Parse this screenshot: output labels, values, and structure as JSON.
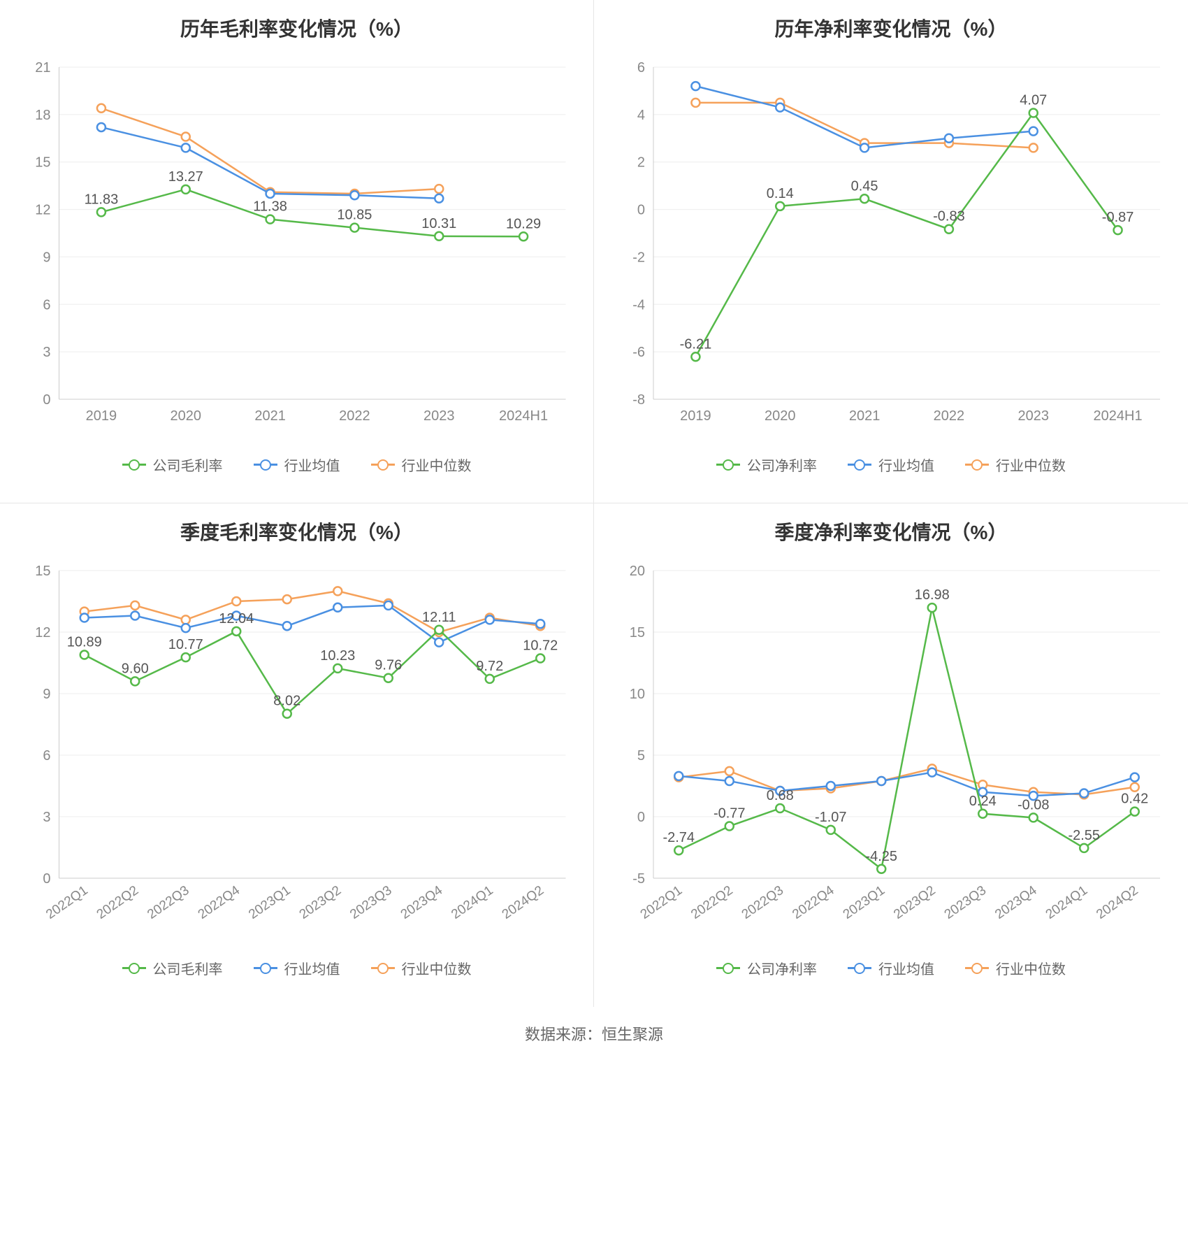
{
  "global": {
    "footer_text": "数据来源：恒生聚源",
    "colors": {
      "company": "#55b949",
      "industry_avg": "#4a90e2",
      "industry_median": "#f5a15a",
      "axis_text": "#888888",
      "axis_line": "#cccccc",
      "grid": "#eeeeee",
      "title": "#333333",
      "background": "#ffffff",
      "value_label": "#555555"
    },
    "line_width": 2.5,
    "marker_radius": 6,
    "marker_fill": "#ffffff",
    "title_fontsize": 28,
    "axis_fontsize": 20,
    "legend_fontsize": 20
  },
  "charts": {
    "annual_gross": {
      "title": "历年毛利率变化情况（%）",
      "type": "line",
      "categories": [
        "2019",
        "2020",
        "2021",
        "2022",
        "2023",
        "2024H1"
      ],
      "x_rotate": 0,
      "ylim": [
        0,
        21
      ],
      "ytick_step": 3,
      "series": [
        {
          "key": "company",
          "name": "公司毛利率",
          "color": "#55b949",
          "show_values": true,
          "data": [
            11.83,
            13.27,
            11.38,
            10.85,
            10.31,
            10.29
          ]
        },
        {
          "key": "industry_avg",
          "name": "行业均值",
          "color": "#4a90e2",
          "show_values": false,
          "data": [
            17.2,
            15.9,
            13.0,
            12.9,
            12.7,
            null
          ]
        },
        {
          "key": "industry_median",
          "name": "行业中位数",
          "color": "#f5a15a",
          "show_values": false,
          "data": [
            18.4,
            16.6,
            13.1,
            13.0,
            13.3,
            null
          ]
        }
      ],
      "legend": [
        "公司毛利率",
        "行业均值",
        "行业中位数"
      ]
    },
    "annual_net": {
      "title": "历年净利率变化情况（%）",
      "type": "line",
      "categories": [
        "2019",
        "2020",
        "2021",
        "2022",
        "2023",
        "2024H1"
      ],
      "x_rotate": 0,
      "ylim": [
        -8,
        6
      ],
      "ytick_step": 2,
      "series": [
        {
          "key": "company",
          "name": "公司净利率",
          "color": "#55b949",
          "show_values": true,
          "data": [
            -6.21,
            0.14,
            0.45,
            -0.83,
            4.07,
            -0.87
          ]
        },
        {
          "key": "industry_avg",
          "name": "行业均值",
          "color": "#4a90e2",
          "show_values": false,
          "data": [
            5.2,
            4.3,
            2.6,
            3.0,
            3.3,
            null
          ]
        },
        {
          "key": "industry_median",
          "name": "行业中位数",
          "color": "#f5a15a",
          "show_values": false,
          "data": [
            4.5,
            4.5,
            2.8,
            2.8,
            2.6,
            null
          ]
        }
      ],
      "legend": [
        "公司净利率",
        "行业均值",
        "行业中位数"
      ]
    },
    "quarter_gross": {
      "title": "季度毛利率变化情况（%）",
      "type": "line",
      "categories": [
        "2022Q1",
        "2022Q2",
        "2022Q3",
        "2022Q4",
        "2023Q1",
        "2023Q2",
        "2023Q3",
        "2023Q4",
        "2024Q1",
        "2024Q2"
      ],
      "x_rotate": -35,
      "ylim": [
        0,
        15
      ],
      "ytick_step": 3,
      "series": [
        {
          "key": "company",
          "name": "公司毛利率",
          "color": "#55b949",
          "show_values": true,
          "data": [
            10.89,
            9.6,
            10.77,
            12.04,
            8.02,
            10.23,
            9.76,
            12.11,
            9.72,
            10.72
          ]
        },
        {
          "key": "industry_avg",
          "name": "行业均值",
          "color": "#4a90e2",
          "show_values": false,
          "data": [
            12.7,
            12.8,
            12.2,
            12.8,
            12.3,
            13.2,
            13.3,
            11.5,
            12.6,
            12.4
          ]
        },
        {
          "key": "industry_median",
          "name": "行业中位数",
          "color": "#f5a15a",
          "show_values": false,
          "data": [
            13.0,
            13.3,
            12.6,
            13.5,
            13.6,
            14.0,
            13.4,
            12.0,
            12.7,
            12.3
          ]
        }
      ],
      "legend": [
        "公司毛利率",
        "行业均值",
        "行业中位数"
      ]
    },
    "quarter_net": {
      "title": "季度净利率变化情况（%）",
      "type": "line",
      "categories": [
        "2022Q1",
        "2022Q2",
        "2022Q3",
        "2022Q4",
        "2023Q1",
        "2023Q2",
        "2023Q3",
        "2023Q4",
        "2024Q1",
        "2024Q2"
      ],
      "x_rotate": -35,
      "ylim": [
        -5,
        20
      ],
      "ytick_step": 5,
      "series": [
        {
          "key": "company",
          "name": "公司净利率",
          "color": "#55b949",
          "show_values": true,
          "data": [
            -2.74,
            -0.77,
            0.68,
            -1.07,
            -4.25,
            16.98,
            0.24,
            -0.08,
            -2.55,
            0.42
          ]
        },
        {
          "key": "industry_avg",
          "name": "行业均值",
          "color": "#4a90e2",
          "show_values": false,
          "data": [
            3.3,
            2.9,
            2.1,
            2.5,
            2.9,
            3.6,
            2.0,
            1.7,
            1.9,
            3.2
          ]
        },
        {
          "key": "industry_median",
          "name": "行业中位数",
          "color": "#f5a15a",
          "show_values": false,
          "data": [
            3.2,
            3.7,
            2.1,
            2.3,
            2.9,
            3.9,
            2.6,
            2.0,
            1.8,
            2.4
          ]
        }
      ],
      "legend": [
        "公司净利率",
        "行业均值",
        "行业中位数"
      ]
    }
  }
}
